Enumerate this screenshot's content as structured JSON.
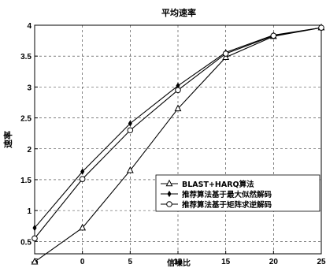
{
  "chart_data": {
    "type": "line",
    "title": "平均速率",
    "xlabel": "信噪比",
    "ylabel": "速率",
    "xlim": [
      -5,
      25
    ],
    "ylim": [
      0.3,
      4
    ],
    "grid": true,
    "legend_position": "bottom-right",
    "x": [
      -5,
      0,
      5,
      10,
      15,
      20,
      25
    ],
    "xticks": [
      "-5",
      "0",
      "5",
      "10",
      "15",
      "20",
      "25"
    ],
    "yticks": [
      "0.5",
      "1",
      "1.5",
      "2",
      "2.5",
      "3",
      "3.5",
      "4"
    ],
    "series": [
      {
        "name": "BLAST+HARQ算法",
        "marker": "triangle",
        "values": [
          0.17,
          0.72,
          1.65,
          2.65,
          3.48,
          3.82,
          3.96
        ]
      },
      {
        "name": "推荐算法基于最大似然解码",
        "marker": "diamond",
        "values": [
          0.72,
          1.63,
          2.41,
          3.02,
          3.56,
          3.84,
          3.96
        ]
      },
      {
        "name": "推荐算法基于矩阵求逆解码",
        "marker": "circle",
        "values": [
          0.55,
          1.51,
          2.3,
          2.95,
          3.54,
          3.83,
          3.96
        ]
      }
    ]
  }
}
